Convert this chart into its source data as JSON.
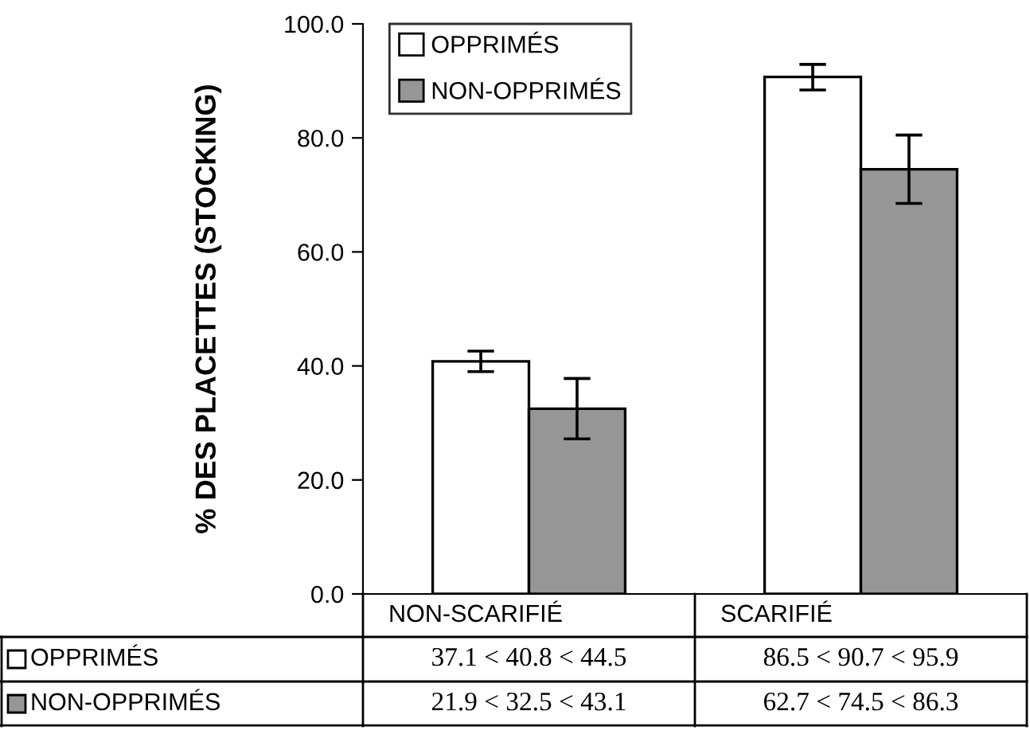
{
  "chart_data": {
    "type": "bar",
    "ylabel": "% DES PLACETTES (STOCKING)",
    "categories": [
      "NON-SCARIFIÉ",
      "SCARIFIÉ"
    ],
    "series": [
      {
        "name": "OPPRIMÉS",
        "color": "#ffffff",
        "values": [
          40.8,
          90.7
        ],
        "errors": [
          [
            39.0,
            42.6
          ],
          [
            88.4,
            92.9
          ]
        ],
        "value_labels": [
          "37.1 < 40.8 < 44.5",
          "86.5 < 90.7 < 95.9"
        ]
      },
      {
        "name": "NON-OPPRIMÉS",
        "color": "#969696",
        "values": [
          32.5,
          74.5
        ],
        "errors": [
          [
            27.2,
            37.8
          ],
          [
            68.5,
            80.5
          ]
        ],
        "value_labels": [
          "21.9 < 32.5 < 43.1",
          "62.7 < 74.5 < 86.3"
        ]
      }
    ],
    "ylim": [
      0,
      100
    ],
    "yticks": [
      {
        "value": 0,
        "label": "0.0"
      },
      {
        "value": 20,
        "label": "20.0"
      },
      {
        "value": 40,
        "label": "40.0"
      },
      {
        "value": 60,
        "label": "60.0"
      },
      {
        "value": 80,
        "label": "80.0"
      },
      {
        "value": 100,
        "label": "100.0"
      }
    ],
    "grid": false,
    "legend": "top left"
  }
}
